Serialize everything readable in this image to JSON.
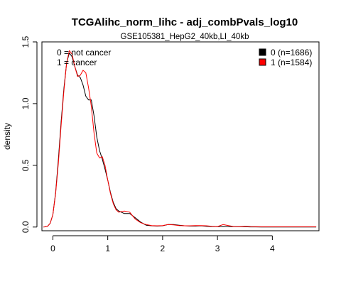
{
  "chart_data": {
    "type": "line",
    "title": "TCGAlihc_norm_lihc - adj_combPvals_log10",
    "subtitle": "GSE105381_HepG2_40kb,LI_40kb",
    "xlabel": "",
    "ylabel": "density",
    "xlim": [
      -0.2,
      4.85
    ],
    "ylim": [
      -0.03,
      1.5
    ],
    "x_ticks": [
      0,
      1,
      2,
      3,
      4
    ],
    "y_ticks": [
      0.0,
      0.5,
      1.0,
      1.5
    ],
    "x_tick_labels": [
      "0",
      "1",
      "2",
      "3",
      "4"
    ],
    "y_tick_labels": [
      "0.0",
      "0.5",
      "1.0",
      "1.5"
    ],
    "annotations": [
      "0 = not cancer",
      "1 = cancer"
    ],
    "legend_position": "top-right",
    "grid": false,
    "series": [
      {
        "name": "0 (n=1686)",
        "color": "#000000",
        "x": [
          -0.17,
          -0.1,
          -0.05,
          0.0,
          0.05,
          0.1,
          0.15,
          0.2,
          0.25,
          0.3,
          0.35,
          0.4,
          0.45,
          0.5,
          0.55,
          0.6,
          0.65,
          0.7,
          0.75,
          0.8,
          0.85,
          0.9,
          0.95,
          1.0,
          1.05,
          1.1,
          1.15,
          1.2,
          1.3,
          1.4,
          1.5,
          1.6,
          1.7,
          1.8,
          1.9,
          2.0,
          2.1,
          2.2,
          2.3,
          2.4,
          2.5,
          2.6,
          2.7,
          2.8,
          2.9,
          3.0,
          3.1,
          3.2,
          3.3,
          3.4,
          3.5,
          3.6,
          3.7,
          3.8,
          3.9,
          4.0,
          4.2,
          4.4,
          4.6,
          4.8
        ],
        "y": [
          0.0,
          0.005,
          0.03,
          0.1,
          0.28,
          0.55,
          0.85,
          1.12,
          1.33,
          1.41,
          1.38,
          1.3,
          1.23,
          1.21,
          1.15,
          1.06,
          1.03,
          1.03,
          0.9,
          0.73,
          0.62,
          0.55,
          0.47,
          0.38,
          0.28,
          0.2,
          0.15,
          0.13,
          0.11,
          0.11,
          0.075,
          0.04,
          0.015,
          0.01,
          0.008,
          0.01,
          0.02,
          0.02,
          0.015,
          0.01,
          0.008,
          0.008,
          0.01,
          0.006,
          0.004,
          0.003,
          0.005,
          0.004,
          0.003,
          0.002,
          0.002,
          0.001,
          0.001,
          0.0,
          0.0,
          0.0,
          0.0,
          0.0,
          0.0,
          0.0
        ]
      },
      {
        "name": "1 (n=1584)",
        "color": "#ff0000",
        "x": [
          -0.17,
          -0.1,
          -0.05,
          0.0,
          0.05,
          0.1,
          0.15,
          0.2,
          0.25,
          0.3,
          0.35,
          0.4,
          0.45,
          0.5,
          0.55,
          0.6,
          0.65,
          0.7,
          0.75,
          0.8,
          0.85,
          0.9,
          0.95,
          1.0,
          1.05,
          1.1,
          1.15,
          1.2,
          1.3,
          1.4,
          1.5,
          1.6,
          1.7,
          1.8,
          1.9,
          2.0,
          2.1,
          2.2,
          2.3,
          2.4,
          2.5,
          2.6,
          2.7,
          2.8,
          2.9,
          3.0,
          3.1,
          3.2,
          3.3,
          3.4,
          3.5,
          3.6,
          3.7,
          3.8,
          3.9,
          4.0,
          4.2,
          4.4,
          4.6,
          4.8
        ],
        "y": [
          0.0,
          0.005,
          0.03,
          0.1,
          0.27,
          0.52,
          0.82,
          1.1,
          1.33,
          1.43,
          1.4,
          1.3,
          1.22,
          1.23,
          1.27,
          1.25,
          1.13,
          0.98,
          0.76,
          0.6,
          0.56,
          0.57,
          0.5,
          0.38,
          0.27,
          0.19,
          0.14,
          0.12,
          0.13,
          0.12,
          0.065,
          0.035,
          0.02,
          0.012,
          0.01,
          0.012,
          0.02,
          0.018,
          0.012,
          0.01,
          0.01,
          0.012,
          0.012,
          0.01,
          0.006,
          0.004,
          0.02,
          0.012,
          0.004,
          0.003,
          0.006,
          0.004,
          0.003,
          0.002,
          0.002,
          0.002,
          0.002,
          0.002,
          0.002,
          0.002
        ]
      }
    ]
  }
}
